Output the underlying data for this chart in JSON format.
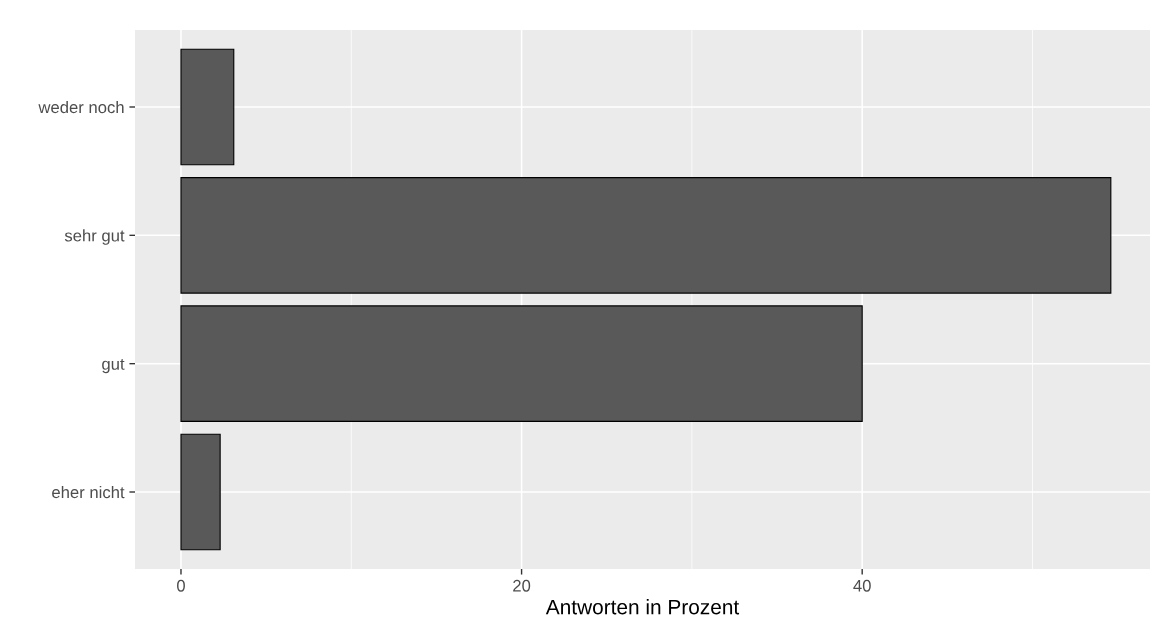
{
  "chart_data": {
    "type": "bar",
    "orientation": "horizontal",
    "xlabel": "Antworten in Prozent",
    "categories": [
      "weder noch",
      "sehr gut",
      "gut",
      "eher nicht"
    ],
    "values": [
      3.1,
      54.6,
      40,
      2.3
    ],
    "color": "#595959",
    "xlim": [
      -2.7,
      56.9
    ],
    "xticks": [
      0,
      20,
      40
    ],
    "grid": true
  }
}
